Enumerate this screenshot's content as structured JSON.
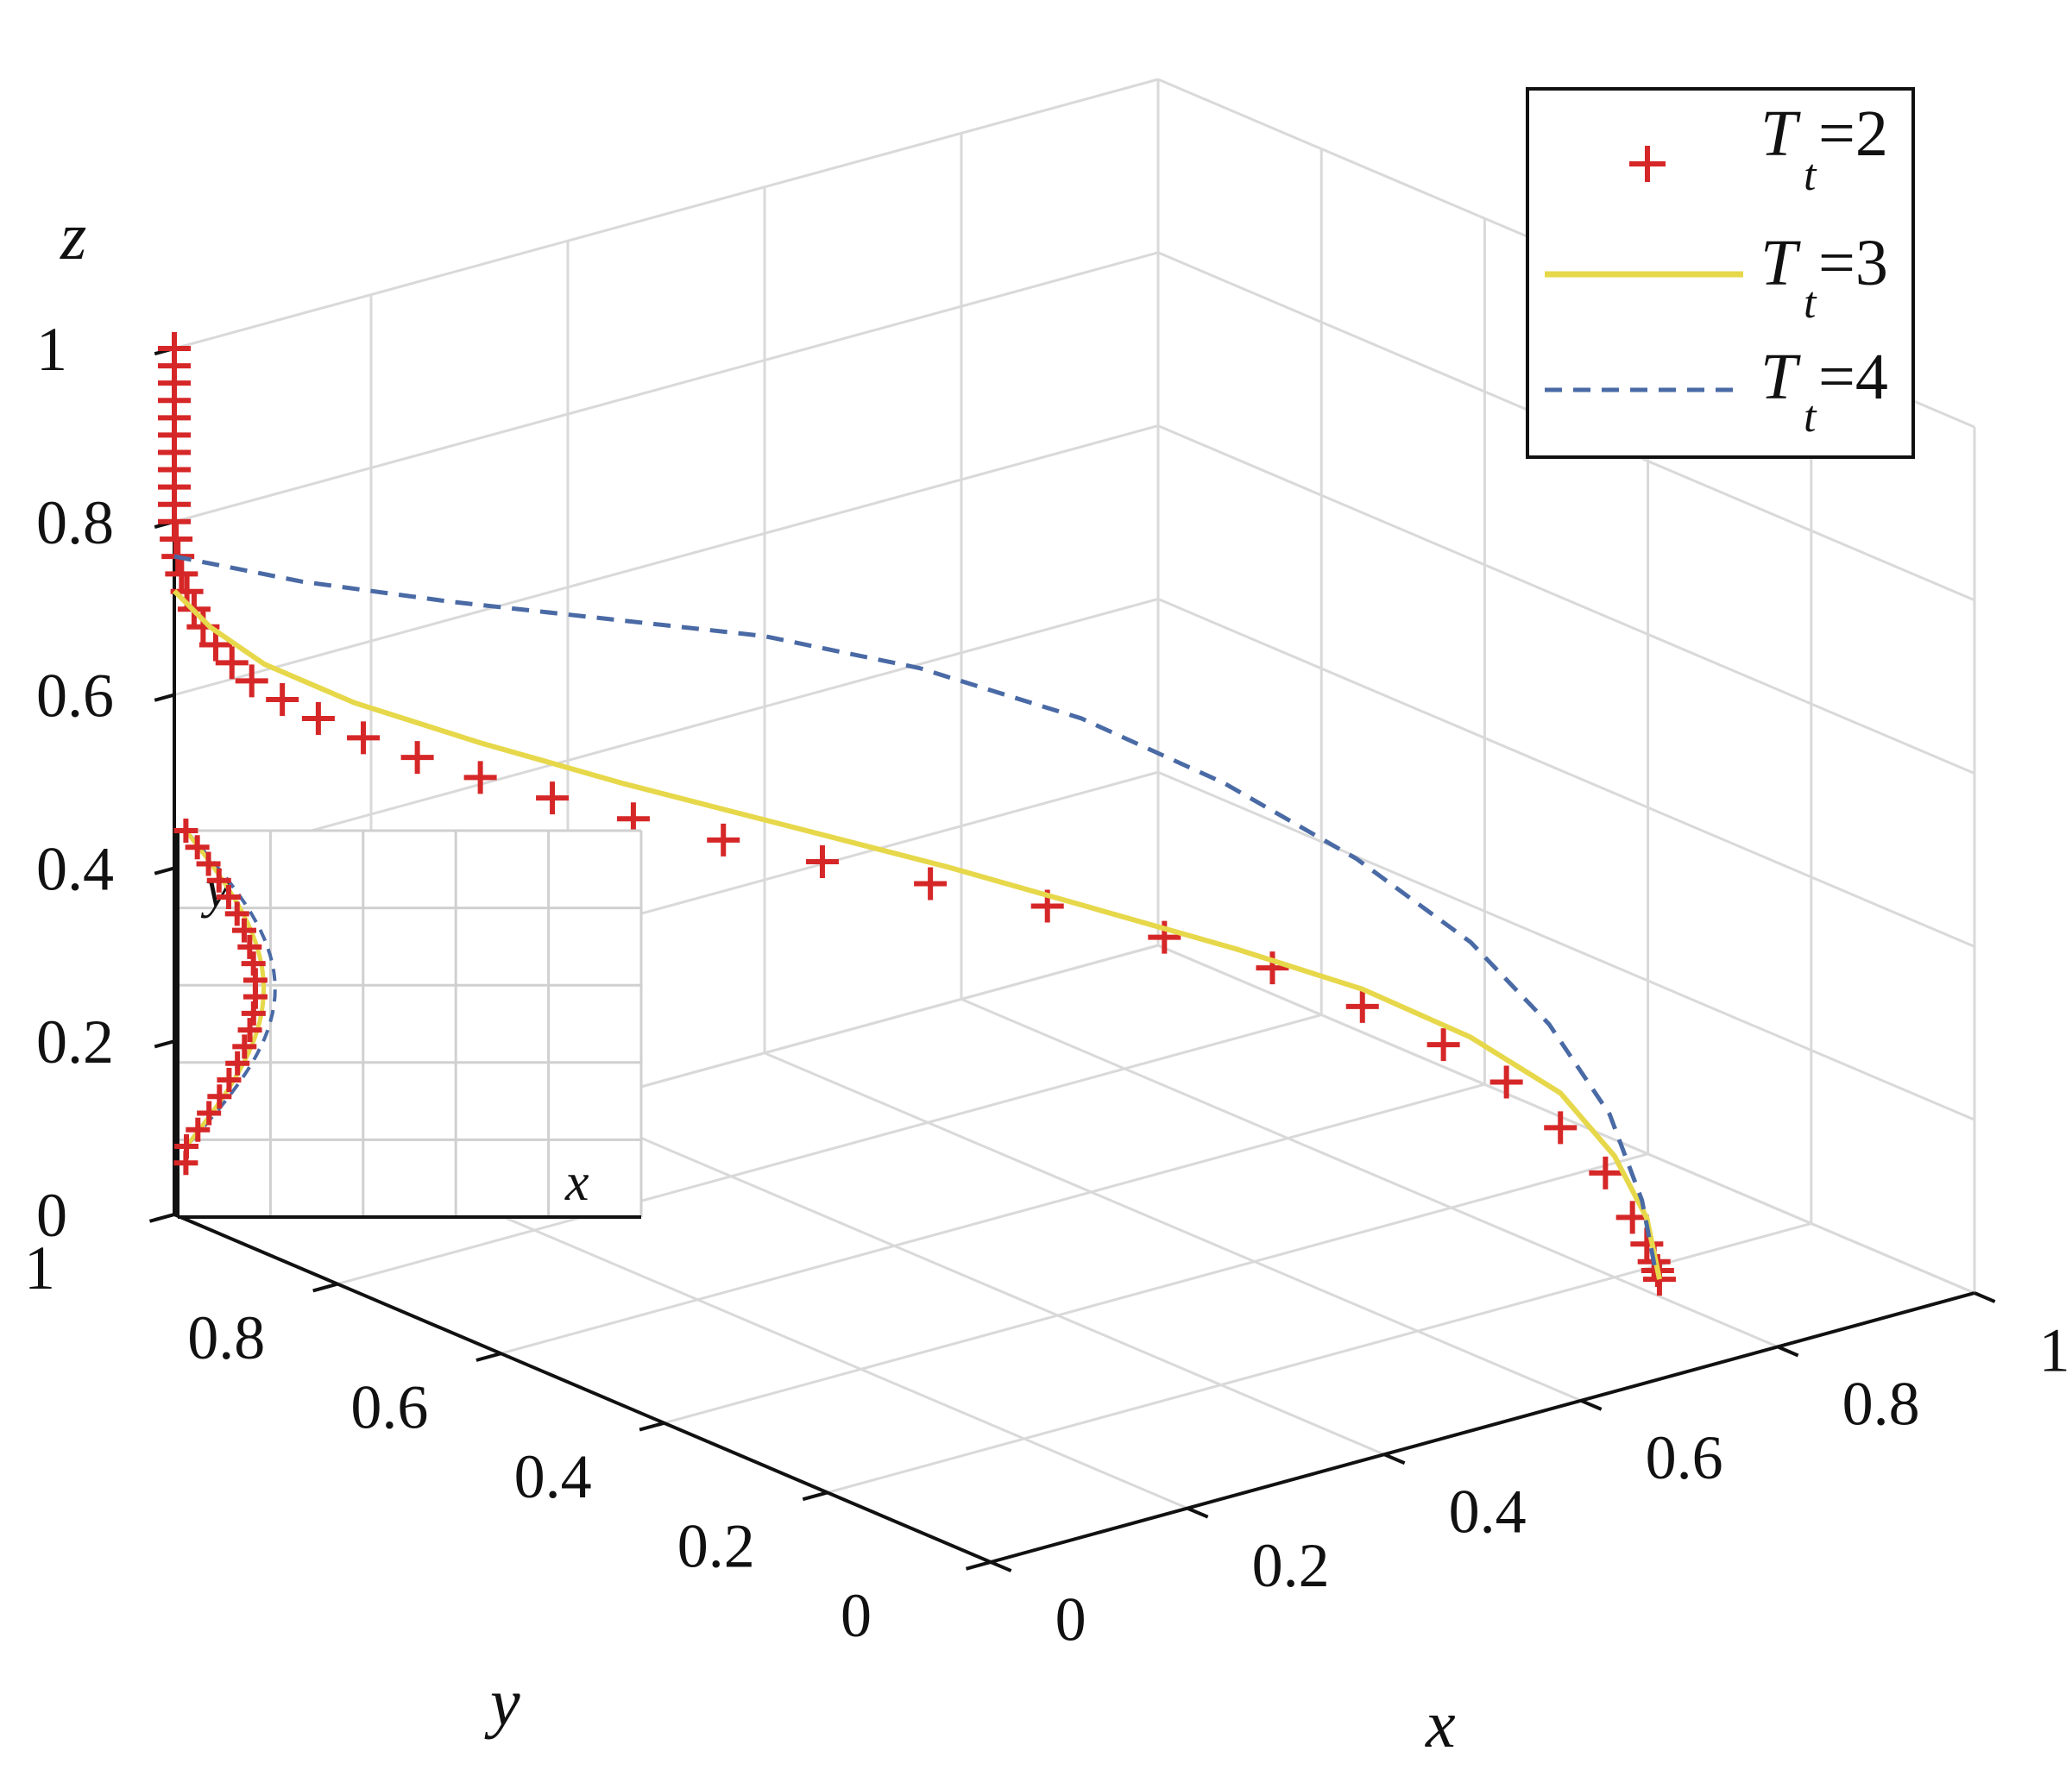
{
  "chart_data": {
    "type": "line3d",
    "axes": {
      "x": {
        "label": "x",
        "range": [
          0,
          1
        ],
        "ticks": [
          "0",
          "0.2",
          "0.4",
          "0.6",
          "0.8",
          "1"
        ]
      },
      "y": {
        "label": "y",
        "range": [
          0,
          1
        ],
        "ticks": [
          "0",
          "0.2",
          "0.4",
          "0.6",
          "0.8",
          "1"
        ]
      },
      "z": {
        "label": "z",
        "range": [
          0,
          1
        ],
        "ticks": [
          "0",
          "0.2",
          "0.4",
          "0.6",
          "0.8",
          "1"
        ]
      }
    },
    "grid": true,
    "legend": {
      "placement": "top-right",
      "entries": [
        {
          "symbol": "T",
          "subscript": "t",
          "text": "=2",
          "style": "plus-markers",
          "color": "#d62728"
        },
        {
          "symbol": "T",
          "subscript": "t",
          "text": "=3",
          "style": "solid",
          "color": "#e6d84a"
        },
        {
          "symbol": "T",
          "subscript": "t",
          "text": "=4",
          "style": "dashed",
          "color": "#4a6aa5"
        }
      ]
    },
    "series": [
      {
        "name": "Tt=2",
        "style": "plus-markers",
        "color": "#d62728",
        "points": [
          [
            0.0,
            1.0,
            1.0
          ],
          [
            0.0,
            1.0,
            0.98
          ],
          [
            0.0,
            1.0,
            0.96
          ],
          [
            0.0,
            1.0,
            0.94
          ],
          [
            0.0,
            1.0,
            0.92
          ],
          [
            0.0,
            1.0,
            0.9
          ],
          [
            0.0,
            1.0,
            0.88
          ],
          [
            0.0,
            1.0,
            0.86
          ],
          [
            0.0,
            1.0,
            0.84
          ],
          [
            0.0,
            1.0,
            0.82
          ],
          [
            0.0,
            1.0,
            0.8
          ],
          [
            0.001,
            0.999,
            0.78
          ],
          [
            0.002,
            0.998,
            0.76
          ],
          [
            0.004,
            0.996,
            0.74
          ],
          [
            0.007,
            0.993,
            0.72
          ],
          [
            0.011,
            0.989,
            0.7
          ],
          [
            0.016,
            0.984,
            0.68
          ],
          [
            0.023,
            0.977,
            0.66
          ],
          [
            0.032,
            0.968,
            0.64
          ],
          [
            0.043,
            0.957,
            0.62
          ],
          [
            0.06,
            0.94,
            0.6
          ],
          [
            0.08,
            0.92,
            0.58
          ],
          [
            0.105,
            0.895,
            0.56
          ],
          [
            0.135,
            0.865,
            0.54
          ],
          [
            0.17,
            0.83,
            0.52
          ],
          [
            0.21,
            0.79,
            0.5
          ],
          [
            0.255,
            0.745,
            0.48
          ],
          [
            0.305,
            0.695,
            0.46
          ],
          [
            0.36,
            0.64,
            0.44
          ],
          [
            0.42,
            0.58,
            0.42
          ],
          [
            0.485,
            0.515,
            0.4
          ],
          [
            0.55,
            0.45,
            0.37
          ],
          [
            0.61,
            0.39,
            0.34
          ],
          [
            0.66,
            0.34,
            0.3
          ],
          [
            0.705,
            0.295,
            0.26
          ],
          [
            0.74,
            0.26,
            0.22
          ],
          [
            0.77,
            0.23,
            0.17
          ],
          [
            0.795,
            0.205,
            0.12
          ],
          [
            0.81,
            0.19,
            0.07
          ],
          [
            0.818,
            0.182,
            0.04
          ],
          [
            0.822,
            0.178,
            0.02
          ],
          [
            0.824,
            0.176,
            0.01
          ],
          [
            0.825,
            0.175,
            0.0
          ]
        ]
      },
      {
        "name": "Tt=3",
        "style": "solid",
        "color": "#e6d84a",
        "points": [
          [
            0.0,
            1.0,
            0.72
          ],
          [
            0.02,
            0.98,
            0.68
          ],
          [
            0.05,
            0.95,
            0.64
          ],
          [
            0.1,
            0.9,
            0.6
          ],
          [
            0.17,
            0.83,
            0.56
          ],
          [
            0.25,
            0.75,
            0.52
          ],
          [
            0.34,
            0.66,
            0.48
          ],
          [
            0.43,
            0.57,
            0.44
          ],
          [
            0.51,
            0.49,
            0.4
          ],
          [
            0.59,
            0.41,
            0.36
          ],
          [
            0.66,
            0.34,
            0.32
          ],
          [
            0.72,
            0.28,
            0.27
          ],
          [
            0.77,
            0.23,
            0.21
          ],
          [
            0.8,
            0.2,
            0.14
          ],
          [
            0.818,
            0.182,
            0.07
          ],
          [
            0.825,
            0.175,
            0.0
          ]
        ]
      },
      {
        "name": "Tt=4",
        "style": "dashed",
        "color": "#4a6aa5",
        "points": [
          [
            0.0,
            1.0,
            0.76
          ],
          [
            0.08,
            0.94,
            0.73
          ],
          [
            0.18,
            0.88,
            0.7
          ],
          [
            0.29,
            0.82,
            0.67
          ],
          [
            0.4,
            0.76,
            0.64
          ],
          [
            0.5,
            0.69,
            0.6
          ],
          [
            0.59,
            0.6,
            0.55
          ],
          [
            0.66,
            0.51,
            0.49
          ],
          [
            0.72,
            0.42,
            0.42
          ],
          [
            0.77,
            0.34,
            0.34
          ],
          [
            0.8,
            0.28,
            0.26
          ],
          [
            0.82,
            0.23,
            0.17
          ],
          [
            0.828,
            0.2,
            0.08
          ],
          [
            0.83,
            0.185,
            0.0
          ]
        ]
      }
    ],
    "inset": {
      "xlabel": "x",
      "ylabel": "y",
      "description_free": true
    }
  }
}
